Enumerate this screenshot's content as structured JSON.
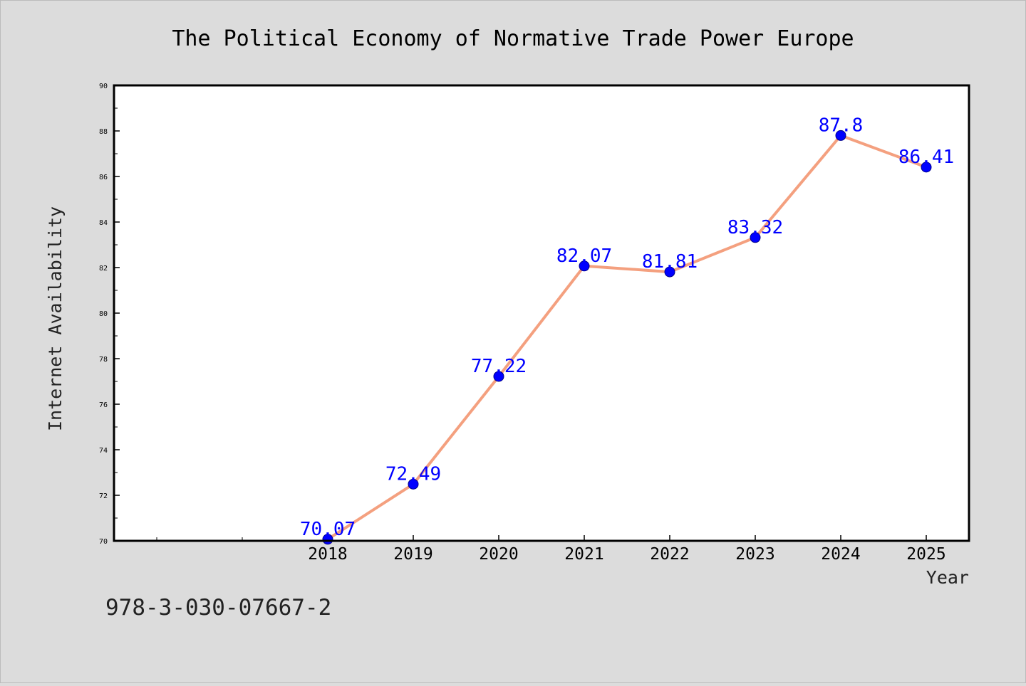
{
  "chart_data": {
    "type": "line",
    "title": "The Political Economy of Normative Trade Power Europe",
    "xlabel": "Year",
    "ylabel": "Internet Availability",
    "ylim": [
      70,
      90
    ],
    "y_ticks": [
      "70",
      "72",
      "74",
      "76",
      "78",
      "80",
      "82",
      "84",
      "86",
      "88",
      "90"
    ],
    "categories": [
      "2018",
      "2019",
      "2020",
      "2021",
      "2022",
      "2023",
      "2024",
      "2025"
    ],
    "series": [
      {
        "values": [
          70.07,
          72.49,
          77.22,
          82.07,
          81.81,
          83.32,
          87.8,
          86.41
        ],
        "labels": [
          "70.07",
          "72.49",
          "77.22",
          "82.07",
          "81.81",
          "83.32",
          "87.8",
          "86.41"
        ]
      }
    ],
    "grid": false,
    "legend": "none",
    "annotation": "978-3-030-07667-2",
    "colors": {
      "line": "#f4a07f",
      "marker": "#0000ff",
      "data_label": "#0000ff",
      "background": "#dcdcdc",
      "plot_background": "#ffffff"
    }
  }
}
